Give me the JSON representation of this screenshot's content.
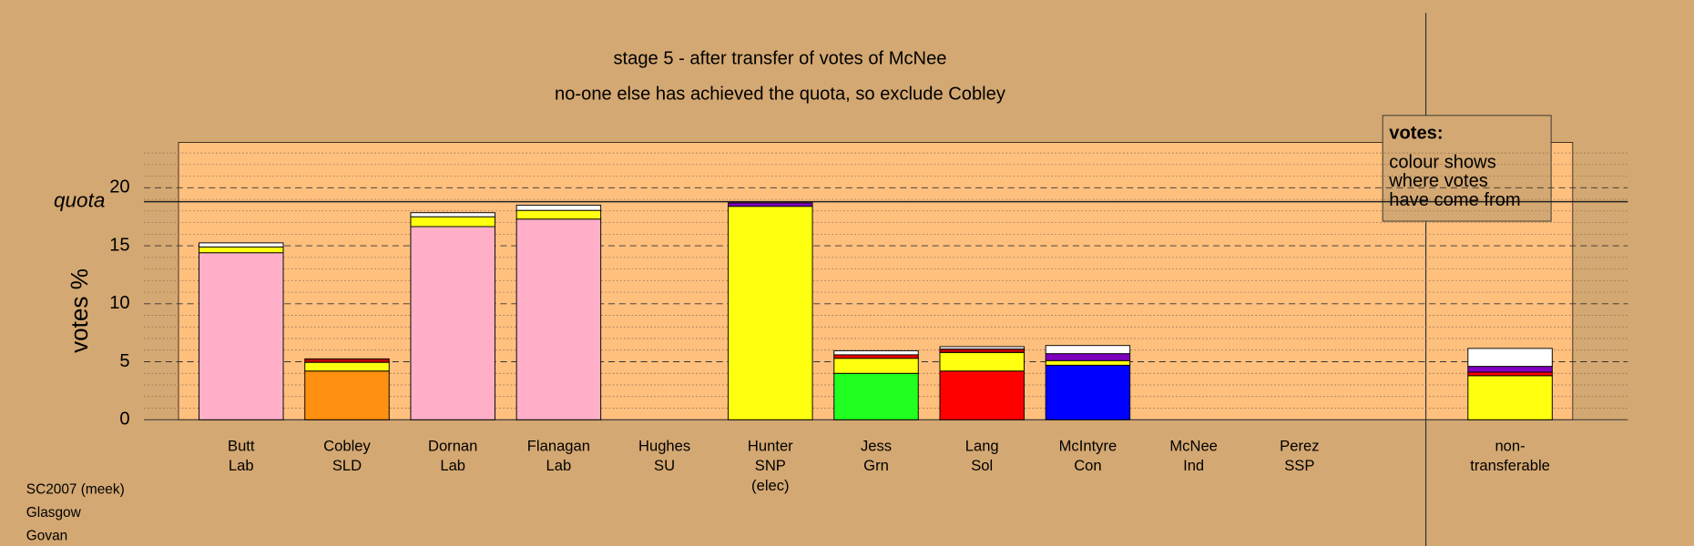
{
  "chart_data": {
    "type": "stacked_bar",
    "title": "stage 5 - after transfer of votes of McNee",
    "subtitle": "no-one else has achieved the quota, so exclude Cobley",
    "y_label": "votes %",
    "ylim": [
      0,
      24
    ],
    "yticks": [
      0,
      5,
      10,
      15,
      20
    ],
    "minor_yticks": [
      1,
      2,
      3,
      4,
      6,
      7,
      8,
      9,
      11,
      12,
      13,
      14,
      16,
      17,
      18,
      19,
      21,
      22,
      23
    ],
    "grid": true,
    "quota": {
      "label": "quota",
      "value": 18.8
    },
    "categories": [
      [
        "Butt",
        "Lab"
      ],
      [
        "Cobley",
        "SLD"
      ],
      [
        "Dornan",
        "Lab"
      ],
      [
        "Flanagan",
        "Lab"
      ],
      [
        "Hughes",
        "SU"
      ],
      [
        "Hunter",
        "SNP",
        "(elec)"
      ],
      [
        "Jess",
        "Grn"
      ],
      [
        "Lang",
        "Sol"
      ],
      [
        "McIntyre",
        "Con"
      ],
      [
        "McNee",
        "Ind"
      ],
      [
        "Perez",
        "SSP"
      ],
      [
        "non-",
        "transferable"
      ]
    ],
    "stacks": [
      [
        {
          "color": "#ffb0c8",
          "value": 14.4
        },
        {
          "color": "#ffff10",
          "value": 0.5
        },
        {
          "color": "#ffffff",
          "value": 0.35
        }
      ],
      [
        {
          "color": "#ff9010",
          "value": 4.2
        },
        {
          "color": "#ffff10",
          "value": 0.75
        },
        {
          "color": "#c00000",
          "value": 0.3
        }
      ],
      [
        {
          "color": "#ffb0c8",
          "value": 16.65
        },
        {
          "color": "#ffff10",
          "value": 0.85
        },
        {
          "color": "#ffffff",
          "value": 0.35
        }
      ],
      [
        {
          "color": "#ffb0c8",
          "value": 17.3
        },
        {
          "color": "#ffff10",
          "value": 0.75
        },
        {
          "color": "#ffffff",
          "value": 0.45
        }
      ],
      [
        {
          "color": "#ffb0c8",
          "value": 0
        }
      ],
      [
        {
          "color": "#ffff10",
          "value": 18.4
        },
        {
          "color": "#8000c0",
          "value": 0.3
        }
      ],
      [
        {
          "color": "#20ff20",
          "value": 4.0
        },
        {
          "color": "#ffff10",
          "value": 1.3
        },
        {
          "color": "#ff0000",
          "value": 0.3
        },
        {
          "color": "#ffffff",
          "value": 0.35
        }
      ],
      [
        {
          "color": "#ff0000",
          "value": 4.2
        },
        {
          "color": "#ffff10",
          "value": 1.6
        },
        {
          "color": "#c00000",
          "value": 0.3
        },
        {
          "color": "#ffffff",
          "value": 0.2
        }
      ],
      [
        {
          "color": "#0000ff",
          "value": 4.7
        },
        {
          "color": "#ffff10",
          "value": 0.4
        },
        {
          "color": "#8000c0",
          "value": 0.6
        },
        {
          "color": "#ffffff",
          "value": 0.7
        }
      ],
      [
        {
          "color": "#ffffff",
          "value": 0
        }
      ],
      [
        {
          "color": "#ffffff",
          "value": 0
        }
      ],
      [
        {
          "color": "#ffff10",
          "value": 3.8
        },
        {
          "color": "#ff0000",
          "value": 0.3
        },
        {
          "color": "#8000c0",
          "value": 0.5
        },
        {
          "color": "#ffffff",
          "value": 1.55
        }
      ]
    ],
    "legend": {
      "title": "votes:",
      "lines": [
        "colour shows",
        "where votes",
        "have come from"
      ]
    },
    "footer": [
      "SC2007 (meek)",
      "Glasgow",
      "Govan"
    ]
  }
}
